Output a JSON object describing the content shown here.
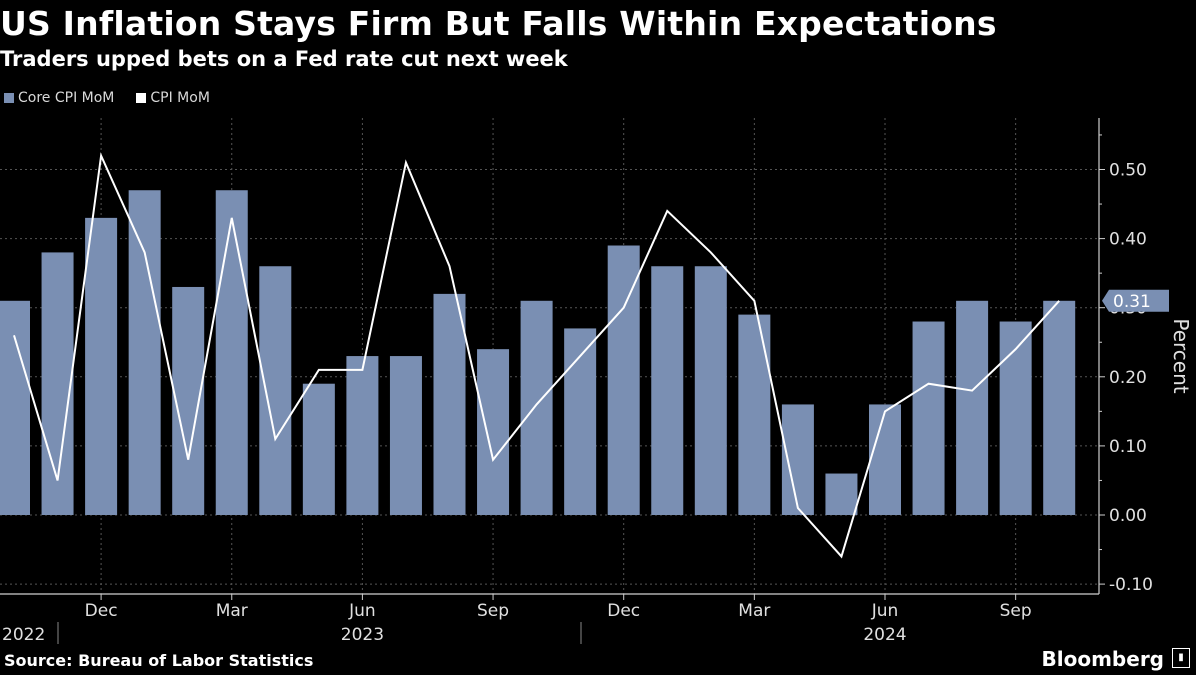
{
  "title": "US Inflation Stays Firm But Falls Within Expectations",
  "subtitle": "Traders upped bets on a Fed rate cut next week",
  "source": "Source: Bureau of Labor Statistics",
  "brand": "Bloomberg",
  "colors": {
    "background": "#000000",
    "bar": "#7a8fb3",
    "line": "#ffffff",
    "grid": "#555555"
  },
  "chart_data": {
    "type": "bar",
    "ylabel": "Percent",
    "ylim": [
      -0.12,
      0.57
    ],
    "yticks": [
      "0.50",
      "0.40",
      "0.30",
      "0.20",
      "0.10",
      "0.00",
      "-0.10"
    ],
    "ytick_values": [
      0.5,
      0.4,
      0.3,
      0.2,
      0.1,
      0.0,
      -0.1
    ],
    "grid": true,
    "legend_position": "top-left",
    "categories": [
      "2022-10",
      "2022-11",
      "2022-12",
      "2023-01",
      "2023-02",
      "2023-03",
      "2023-04",
      "2023-05",
      "2023-06",
      "2023-07",
      "2023-08",
      "2023-09",
      "2023-10",
      "2023-11",
      "2023-12",
      "2024-01",
      "2024-02",
      "2024-03",
      "2024-04",
      "2024-05",
      "2024-06",
      "2024-07",
      "2024-08",
      "2024-09",
      "2024-10"
    ],
    "x_month_labels": [
      {
        "label": "Dec",
        "index": 2
      },
      {
        "label": "Mar",
        "index": 5
      },
      {
        "label": "Jun",
        "index": 8
      },
      {
        "label": "Sep",
        "index": 11
      },
      {
        "label": "Dec",
        "index": 14
      },
      {
        "label": "Mar",
        "index": 17
      },
      {
        "label": "Jun",
        "index": 20
      },
      {
        "label": "Sep",
        "index": 23
      }
    ],
    "x_year_labels": [
      {
        "label": "2022",
        "index": -0.2
      },
      {
        "label": "2023",
        "index": 8
      },
      {
        "label": "2024",
        "index": 20
      }
    ],
    "series": [
      {
        "name": "Core CPI MoM",
        "kind": "bar",
        "values": [
          0.31,
          0.38,
          0.43,
          0.47,
          0.33,
          0.47,
          0.36,
          0.19,
          0.23,
          0.23,
          0.32,
          0.24,
          0.31,
          0.27,
          0.39,
          0.36,
          0.36,
          0.29,
          0.16,
          0.06,
          0.16,
          0.28,
          0.31,
          0.28,
          0.31
        ]
      },
      {
        "name": "CPI MoM",
        "kind": "line",
        "values": [
          0.26,
          0.05,
          0.52,
          0.38,
          0.08,
          0.43,
          0.11,
          0.21,
          0.21,
          0.51,
          0.36,
          0.08,
          0.16,
          0.23,
          0.3,
          0.44,
          0.38,
          0.31,
          0.01,
          -0.06,
          0.15,
          0.19,
          0.18,
          0.24,
          0.31
        ]
      }
    ],
    "last_value_label": "0.31"
  }
}
